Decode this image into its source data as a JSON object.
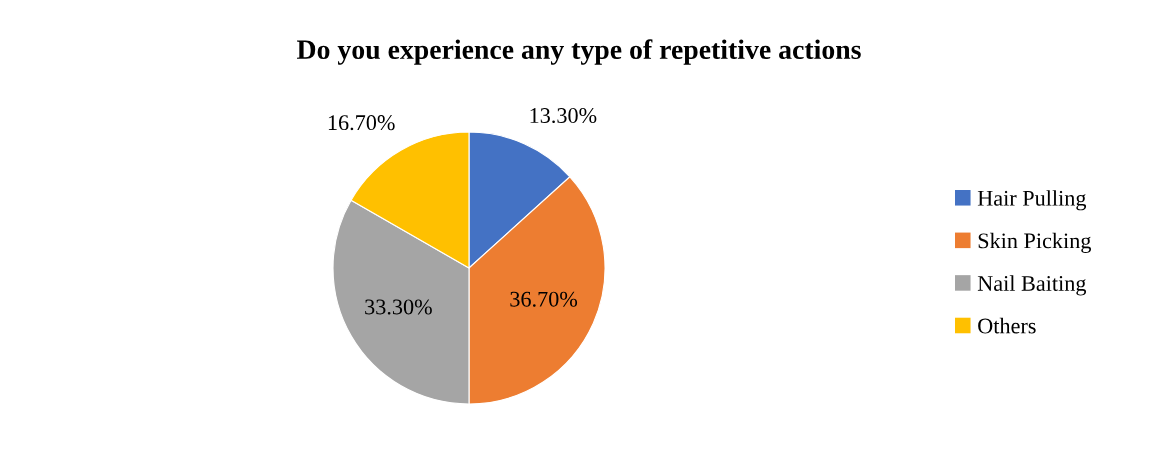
{
  "chart_data": {
    "type": "pie",
    "title": "Do you experience any type of repetitive actions",
    "categories": [
      "Hair Pulling",
      "Skin Picking",
      "Nail Baiting",
      "Others"
    ],
    "values": [
      13.3,
      36.7,
      33.3,
      16.7
    ],
    "value_labels": [
      "13.30%",
      "36.70%",
      "33.30%",
      "16.70%"
    ],
    "colors": [
      "#4472c4",
      "#ed7d31",
      "#a5a5a5",
      "#ffc000"
    ],
    "legend": "right"
  }
}
